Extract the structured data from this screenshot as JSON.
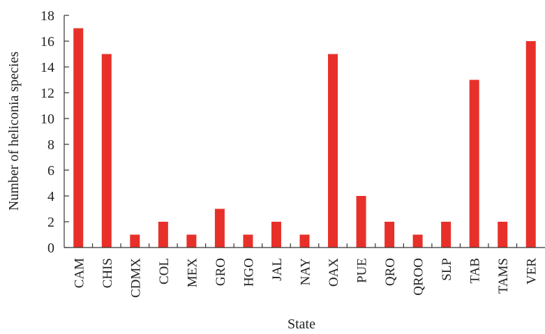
{
  "chart_data": {
    "type": "bar",
    "title": "",
    "xlabel": "State",
    "ylabel": "Number of heliconia species",
    "ylim": [
      0,
      18
    ],
    "yticks": [
      0,
      2,
      4,
      6,
      8,
      10,
      12,
      14,
      16,
      18
    ],
    "categories": [
      "CAM",
      "CHIS",
      "CDMX",
      "COL",
      "MEX",
      "GRO",
      "HGO",
      "JAL",
      "NAY",
      "OAX",
      "PUE",
      "QRO",
      "QROO",
      "SLP",
      "TAB",
      "TAMS",
      "VER"
    ],
    "values": [
      17,
      15,
      1,
      2,
      1,
      3,
      1,
      2,
      1,
      15,
      4,
      2,
      1,
      2,
      13,
      2,
      16
    ],
    "bar_color": "#e8302a",
    "grid": false,
    "legend": "none"
  }
}
